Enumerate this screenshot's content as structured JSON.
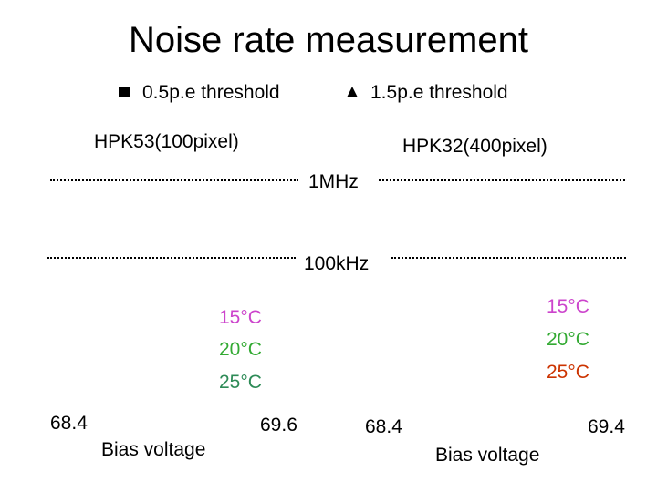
{
  "title": "Noise rate measurement",
  "legend": [
    {
      "marker": "square",
      "label": "0.5p.e threshold"
    },
    {
      "marker": "triangle",
      "label": "1.5p.e threshold"
    }
  ],
  "colors": {
    "text": "#000000",
    "temp_15": "#cc44cc",
    "temp_20": "#33aa33",
    "temp_25_left": "#2e8b57",
    "temp_25_right": "#cc3300"
  },
  "chart_data": [
    {
      "type": "scatter",
      "title": "HPK53(100pixel)",
      "xlabel": "Bias voltage",
      "x_ticks": [
        "68.4",
        "69.6"
      ],
      "xlim": [
        68.4,
        69.6
      ],
      "reference_lines": [
        "1MHz",
        "100kHz"
      ],
      "series": [
        {
          "name": "15°C",
          "values": []
        },
        {
          "name": "20°C",
          "values": []
        },
        {
          "name": "25°C",
          "values": []
        }
      ]
    },
    {
      "type": "scatter",
      "title": "HPK32(400pixel)",
      "xlabel": "Bias voltage",
      "x_ticks": [
        "68.4",
        "69.4"
      ],
      "xlim": [
        68.4,
        69.4
      ],
      "reference_lines": [
        "1MHz",
        "100kHz"
      ],
      "series": [
        {
          "name": "15°C",
          "values": []
        },
        {
          "name": "20°C",
          "values": []
        },
        {
          "name": "25°C",
          "values": []
        }
      ]
    }
  ]
}
